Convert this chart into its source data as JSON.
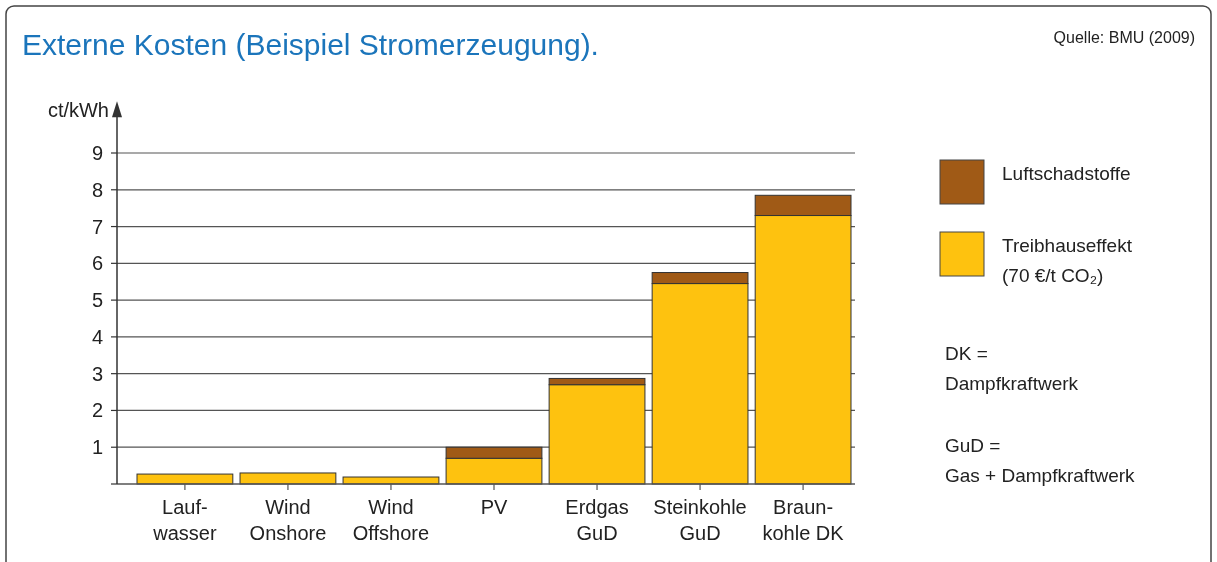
{
  "chart_data": {
    "type": "bar",
    "title": "Externe Kosten (Beispiel Stromerzeugung).",
    "ylabel": "ct/kWh",
    "categories": [
      "Lauf-\nwasser",
      "Wind\nOnshore",
      "Wind\nOffshore",
      "PV",
      "Erdgas\nGuD",
      "Steinkohle\nGuD",
      "Braun-\nkohle DK"
    ],
    "stacked": true,
    "series": [
      {
        "name": "Treibhauseffekt\n(70 €/t CO₂)",
        "color": "#fec20f",
        "values": [
          0.27,
          0.3,
          0.19,
          0.7,
          2.7,
          5.45,
          7.3
        ]
      },
      {
        "name": "Luftschadstoffe",
        "color": "#a05a16",
        "values": [
          0,
          0,
          0,
          0.3,
          0.17,
          0.3,
          0.55
        ]
      }
    ],
    "ylim": [
      0,
      10.3
    ],
    "yticks": [
      {
        "value": 0,
        "label": null
      },
      1,
      2,
      3,
      4,
      5,
      6,
      7,
      8,
      9
    ],
    "grid": "y",
    "legend": "right",
    "annotations": [
      "Quelle: BMU (2009)",
      "DK =\nDampfkraftwerk",
      "GuD =\nGas + Dampfkraftwerk"
    ]
  }
}
